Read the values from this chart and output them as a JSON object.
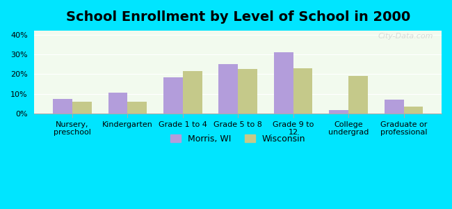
{
  "title": "School Enrollment by Level of School in 2000",
  "categories": [
    "Nursery,\npreschool",
    "Kindergarten",
    "Grade 1 to 4",
    "Grade 5 to 8",
    "Grade 9 to\n12",
    "College\nundergrad",
    "Graduate or\nprofessional"
  ],
  "morris_values": [
    7.5,
    10.5,
    18.5,
    25.0,
    31.0,
    2.0,
    7.0
  ],
  "wisconsin_values": [
    6.0,
    6.0,
    21.5,
    22.5,
    23.0,
    19.0,
    3.5
  ],
  "morris_color": "#b39ddb",
  "wisconsin_color": "#c5c98a",
  "background_color": "#00e5ff",
  "plot_bg_start": "#f0fff0",
  "plot_bg_end": "#ffffff",
  "ylabel_ticks": [
    "0%",
    "10%",
    "20%",
    "30%",
    "40%"
  ],
  "ytick_values": [
    0,
    10,
    20,
    30,
    40
  ],
  "ylim": [
    0,
    42
  ],
  "legend_morris": "Morris, WI",
  "legend_wisconsin": "Wisconsin",
  "watermark": "City-Data.com",
  "bar_width": 0.35,
  "title_fontsize": 14,
  "tick_fontsize": 8,
  "legend_fontsize": 9
}
